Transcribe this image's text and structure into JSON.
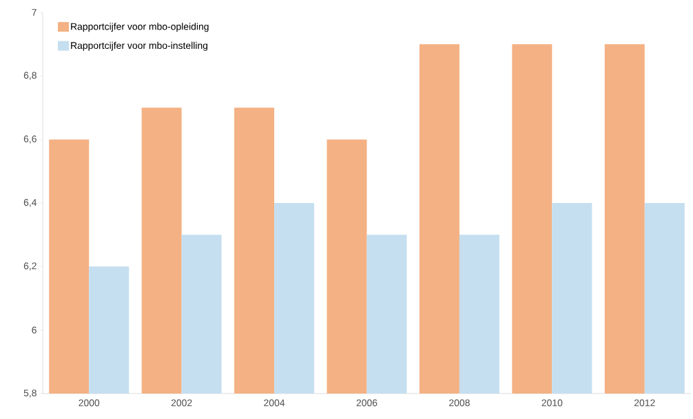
{
  "chart_data": {
    "type": "bar",
    "categories": [
      "2000",
      "2002",
      "2004",
      "2006",
      "2008",
      "2010",
      "2012"
    ],
    "series": [
      {
        "name": "Rapportcijfer voor mbo-opleiding",
        "color": "#f4b183",
        "values": [
          6.6,
          6.7,
          6.7,
          6.6,
          6.9,
          6.9,
          6.9
        ]
      },
      {
        "name": "Rapportcijfer voor mbo-instelling",
        "color": "#c5dff0",
        "values": [
          6.2,
          6.3,
          6.4,
          6.3,
          6.3,
          6.4,
          6.4
        ]
      }
    ],
    "ylim": [
      5.8,
      7
    ],
    "yticks": [
      {
        "value": 5.8,
        "label": "5,8"
      },
      6,
      {
        "value": 6.2,
        "label": "6,2"
      },
      {
        "value": 6.4,
        "label": "6,4"
      },
      {
        "value": 6.6,
        "label": "6,6"
      },
      {
        "value": 6.8,
        "label": "6,8"
      },
      7
    ],
    "legend": "top left"
  }
}
